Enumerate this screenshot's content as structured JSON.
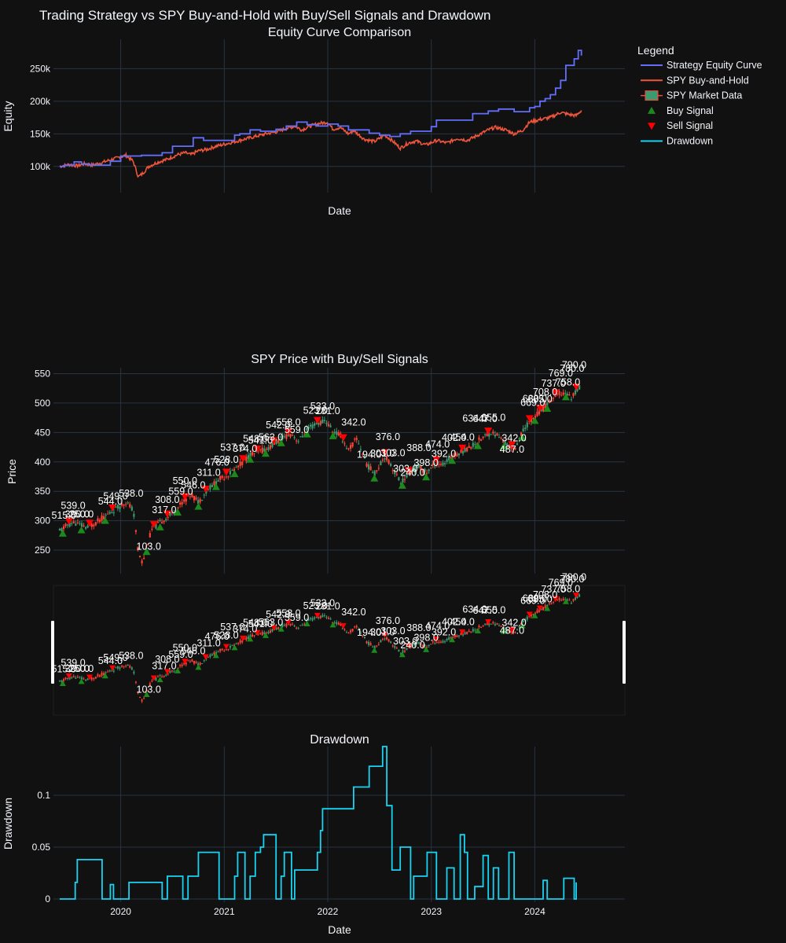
{
  "figure": {
    "title": "Trading Strategy vs SPY Buy-and-Hold with Buy/Sell Signals and Drawdown",
    "colors": {
      "background": "#111111",
      "grid": "#283442",
      "strategy": "#636efa",
      "spy": "#ef553b",
      "candle_up": "#3d9970",
      "candle_down": "#ff4136",
      "buy": "#1a8a1a",
      "sell": "#ff0000",
      "drawdown": "#19d3f3"
    }
  },
  "legend": {
    "title": "Legend",
    "items": [
      {
        "label": "Strategy Equity Curve",
        "kind": "line",
        "color": "#636efa"
      },
      {
        "label": "SPY Buy-and-Hold",
        "kind": "line",
        "color": "#ef553b"
      },
      {
        "label": "SPY Market Data",
        "kind": "candle",
        "color": "#3d9970"
      },
      {
        "label": "Buy Signal",
        "kind": "triangle-up",
        "color": "#1a8a1a"
      },
      {
        "label": "Sell Signal",
        "kind": "triangle-down",
        "color": "#ff0000"
      },
      {
        "label": "Drawdown",
        "kind": "line",
        "color": "#19d3f3"
      }
    ]
  },
  "chart_data": [
    {
      "type": "line",
      "title": "Equity Curve Comparison",
      "xlabel": "Date",
      "ylabel": "Equity",
      "xlim": [
        2019.35,
        2024.87
      ],
      "ylim": [
        60000,
        295000
      ],
      "x_ticks": [
        2020,
        2021,
        2022,
        2023,
        2024
      ],
      "y_ticks": [
        {
          "v": 100000,
          "label": "100k"
        },
        {
          "v": 150000,
          "label": "150k"
        },
        {
          "v": 200000,
          "label": "200k"
        },
        {
          "v": 250000,
          "label": "250k"
        }
      ],
      "series": [
        {
          "name": "Strategy Equity Curve",
          "shape": "step",
          "x": [
            2019.41,
            2019.46,
            2019.55,
            2019.62,
            2019.7,
            2019.9,
            2020.0,
            2020.2,
            2020.4,
            2020.5,
            2020.65,
            2020.7,
            2020.8,
            2020.95,
            2021.1,
            2021.15,
            2021.25,
            2021.35,
            2021.5,
            2021.6,
            2021.7,
            2021.8,
            2021.9,
            2022.0,
            2022.1,
            2022.2,
            2022.4,
            2022.5,
            2022.6,
            2022.7,
            2022.8,
            2023.0,
            2023.05,
            2023.3,
            2023.4,
            2023.55,
            2023.65,
            2023.8,
            2023.95,
            2024.0,
            2024.05,
            2024.1,
            2024.15,
            2024.2,
            2024.25,
            2024.3,
            2024.38,
            2024.42,
            2024.45
          ],
          "y": [
            100000,
            102000,
            107000,
            104000,
            102000,
            108000,
            116000,
            117000,
            121000,
            131000,
            131000,
            144000,
            140000,
            140000,
            148000,
            150000,
            156000,
            154000,
            157000,
            162000,
            168000,
            164000,
            162000,
            165000,
            162000,
            156000,
            151000,
            148000,
            146000,
            150000,
            154000,
            161000,
            171000,
            171000,
            181000,
            185000,
            188000,
            184000,
            190000,
            192000,
            200000,
            204000,
            210000,
            220000,
            232000,
            255000,
            265000,
            278000,
            270000
          ]
        },
        {
          "name": "SPY Buy-and-Hold",
          "shape": "line",
          "x": [
            2019.41,
            2019.5,
            2019.58,
            2019.65,
            2019.72,
            2019.82,
            2019.92,
            2020.05,
            2020.12,
            2020.17,
            2020.21,
            2020.27,
            2020.35,
            2020.45,
            2020.55,
            2020.62,
            2020.68,
            2020.75,
            2020.83,
            2020.92,
            2021.0,
            2021.1,
            2021.2,
            2021.3,
            2021.4,
            2021.5,
            2021.6,
            2021.68,
            2021.75,
            2021.83,
            2021.92,
            2022.0,
            2022.05,
            2022.12,
            2022.2,
            2022.25,
            2022.35,
            2022.45,
            2022.55,
            2022.62,
            2022.7,
            2022.78,
            2022.85,
            2022.95,
            2023.05,
            2023.15,
            2023.25,
            2023.35,
            2023.45,
            2023.55,
            2023.62,
            2023.72,
            2023.8,
            2023.88,
            2023.95,
            2024.05,
            2024.15,
            2024.25,
            2024.32,
            2024.4,
            2024.45
          ],
          "y": [
            100000,
            103000,
            101000,
            104000,
            102000,
            106000,
            111000,
            117000,
            108000,
            84000,
            89000,
            100000,
            106000,
            111000,
            118000,
            121000,
            118000,
            124000,
            126000,
            131000,
            134000,
            138000,
            142000,
            146000,
            150000,
            153000,
            158000,
            162000,
            156000,
            162000,
            166000,
            168000,
            157000,
            160000,
            150000,
            155000,
            142000,
            138000,
            148000,
            140000,
            128000,
            136000,
            139000,
            133000,
            140000,
            136000,
            143000,
            140000,
            148000,
            156000,
            160000,
            156000,
            150000,
            155000,
            168000,
            172000,
            175000,
            183000,
            180000,
            178000,
            186000
          ]
        }
      ]
    },
    {
      "type": "candlestick",
      "title": "SPY Price with Buy/Sell Signals",
      "ylabel": "Price",
      "xlim": [
        2019.35,
        2024.87
      ],
      "ylim": [
        210,
        560
      ],
      "x_ticks": [
        2020,
        2021,
        2022,
        2023,
        2024
      ],
      "y_ticks": [
        {
          "v": 250,
          "label": "250"
        },
        {
          "v": 300,
          "label": "300"
        },
        {
          "v": 350,
          "label": "350"
        },
        {
          "v": 400,
          "label": "400"
        },
        {
          "v": 450,
          "label": "450"
        },
        {
          "v": 500,
          "label": "500"
        },
        {
          "v": 550,
          "label": "550"
        }
      ],
      "price_path": {
        "x": [
          2019.41,
          2019.48,
          2019.55,
          2019.62,
          2019.68,
          2019.75,
          2019.85,
          2019.95,
          2020.05,
          2020.12,
          2020.17,
          2020.21,
          2020.25,
          2020.3,
          2020.4,
          2020.5,
          2020.6,
          2020.68,
          2020.75,
          2020.85,
          2020.95,
          2021.05,
          2021.15,
          2021.25,
          2021.35,
          2021.45,
          2021.55,
          2021.65,
          2021.72,
          2021.8,
          2021.9,
          2021.98,
          2022.05,
          2022.12,
          2022.2,
          2022.28,
          2022.38,
          2022.45,
          2022.55,
          2022.62,
          2022.7,
          2022.75,
          2022.8,
          2022.88,
          2022.95,
          2023.05,
          2023.12,
          2023.2,
          2023.3,
          2023.4,
          2023.5,
          2023.58,
          2023.65,
          2023.72,
          2023.8,
          2023.85,
          2023.92,
          2024.0,
          2024.08,
          2024.15,
          2024.22,
          2024.3,
          2024.35,
          2024.4,
          2024.45
        ],
        "y": [
          282,
          292,
          297,
          292,
          288,
          296,
          308,
          320,
          332,
          318,
          248,
          228,
          255,
          285,
          300,
          312,
          332,
          345,
          332,
          355,
          370,
          380,
          395,
          412,
          418,
          426,
          440,
          448,
          435,
          455,
          465,
          470,
          452,
          445,
          420,
          440,
          395,
          380,
          410,
          392,
          365,
          372,
          385,
          392,
          382,
          398,
          395,
          410,
          418,
          428,
          442,
          450,
          444,
          430,
          422,
          440,
          462,
          478,
          490,
          505,
          515,
          518,
          508,
          522,
          528
        ]
      },
      "buy_signals": [
        2019.44,
        2019.62,
        2019.85,
        2020.25,
        2020.38,
        2020.55,
        2020.75,
        2020.92,
        2021.1,
        2021.25,
        2021.4,
        2021.55,
        2021.8,
        2022.05,
        2022.45,
        2022.72,
        2022.95,
        2023.2,
        2023.45,
        2023.7,
        2023.88,
        2024.0,
        2024.12,
        2024.3
      ],
      "sell_signals": [
        2019.5,
        2019.7,
        2019.92,
        2020.32,
        2020.45,
        2020.62,
        2020.82,
        2021.02,
        2021.18,
        2021.32,
        2021.48,
        2021.62,
        2021.9,
        2022.15,
        2022.55,
        2022.78,
        2023.05,
        2023.3,
        2023.55,
        2023.78,
        2023.95,
        2024.05,
        2024.2,
        2024.4
      ],
      "annotations": [
        {
          "x": 2019.45,
          "text": "515.0",
          "dy": -6
        },
        {
          "x": 2019.54,
          "text": "539.0",
          "dy": -12
        },
        {
          "x": 2019.58,
          "text": "390.0",
          "dy": -2
        },
        {
          "x": 2019.62,
          "text": "250.0",
          "dy": -4
        },
        {
          "x": 2019.9,
          "text": "544.0",
          "dy": -4
        },
        {
          "x": 2019.95,
          "text": "549.0",
          "dy": -6
        },
        {
          "x": 2020.1,
          "text": "538.0",
          "dy": -8
        },
        {
          "x": 2020.27,
          "text": "103.0",
          "dy": 18
        },
        {
          "x": 2020.45,
          "text": "308.0",
          "dy": -12
        },
        {
          "x": 2020.42,
          "text": "317.0",
          "dy": -2
        },
        {
          "x": 2020.58,
          "text": "559.0",
          "dy": -6
        },
        {
          "x": 2020.62,
          "text": "550.0",
          "dy": -14
        },
        {
          "x": 2020.7,
          "text": "546.0",
          "dy": -4
        },
        {
          "x": 2020.85,
          "text": "311.0",
          "dy": -10
        },
        {
          "x": 2020.93,
          "text": "476.0",
          "dy": -14
        },
        {
          "x": 2021.02,
          "text": "528.0",
          "dy": -10
        },
        {
          "x": 2021.08,
          "text": "537.0",
          "dy": -20
        },
        {
          "x": 2021.2,
          "text": "374.0",
          "dy": -4
        },
        {
          "x": 2021.3,
          "text": "548.0",
          "dy": -8
        },
        {
          "x": 2021.35,
          "text": "541.0",
          "dy": -4
        },
        {
          "x": 2021.45,
          "text": "563.0",
          "dy": -2
        },
        {
          "x": 2021.52,
          "text": "542.0",
          "dy": -10
        },
        {
          "x": 2021.62,
          "text": "558.0",
          "dy": -6
        },
        {
          "x": 2021.7,
          "text": "559.0",
          "dy": -2
        },
        {
          "x": 2021.88,
          "text": "523.0",
          "dy": -8
        },
        {
          "x": 2021.95,
          "text": "533.0",
          "dy": -10
        },
        {
          "x": 2022.0,
          "text": "281.0",
          "dy": -6
        },
        {
          "x": 2022.25,
          "text": "342.0",
          "dy": -16
        },
        {
          "x": 2022.4,
          "text": "194.0",
          "dy": -6
        },
        {
          "x": 2022.53,
          "text": "301.0",
          "dy": 2
        },
        {
          "x": 2022.58,
          "text": "376.0",
          "dy": -20
        },
        {
          "x": 2022.63,
          "text": "303.0",
          "dy": -10
        },
        {
          "x": 2022.75,
          "text": "303.0",
          "dy": -2
        },
        {
          "x": 2022.82,
          "text": "240.0",
          "dy": 14
        },
        {
          "x": 2022.88,
          "text": "388.0",
          "dy": -14
        },
        {
          "x": 2022.95,
          "text": "398.0",
          "dy": -2
        },
        {
          "x": 2023.06,
          "text": "474.0",
          "dy": -14
        },
        {
          "x": 2023.12,
          "text": "392.0",
          "dy": -4
        },
        {
          "x": 2023.22,
          "text": "402.0",
          "dy": -12
        },
        {
          "x": 2023.3,
          "text": "454.0",
          "dy": -8
        },
        {
          "x": 2023.42,
          "text": "634.0",
          "dy": -22
        },
        {
          "x": 2023.52,
          "text": "647.0",
          "dy": -12
        },
        {
          "x": 2023.6,
          "text": "655.0",
          "dy": -10
        },
        {
          "x": 2023.8,
          "text": "342.0",
          "dy": -4
        },
        {
          "x": 2023.78,
          "text": "487.0",
          "dy": 12
        },
        {
          "x": 2023.98,
          "text": "669.0",
          "dy": -10
        },
        {
          "x": 2024.0,
          "text": "680.0",
          "dy": -12
        },
        {
          "x": 2024.05,
          "text": "685.0",
          "dy": -6
        },
        {
          "x": 2024.1,
          "text": "708.0",
          "dy": -8
        },
        {
          "x": 2024.18,
          "text": "737.0",
          "dy": -8
        },
        {
          "x": 2024.25,
          "text": "769.0",
          "dy": -16
        },
        {
          "x": 2024.32,
          "text": "758.0",
          "dy": -6
        },
        {
          "x": 2024.36,
          "text": "780.0",
          "dy": -26
        },
        {
          "x": 2024.38,
          "text": "790.0",
          "dy": -26
        }
      ]
    },
    {
      "type": "line",
      "title": "Drawdown",
      "xlabel": "Date",
      "ylabel": "Drawdown",
      "xlim": [
        2019.35,
        2024.87
      ],
      "ylim": [
        -0.003,
        0.147
      ],
      "x_ticks": [
        {
          "v": 2020,
          "label": "2020"
        },
        {
          "v": 2021,
          "label": "2021"
        },
        {
          "v": 2022,
          "label": "2022"
        },
        {
          "v": 2023,
          "label": "2023"
        },
        {
          "v": 2024,
          "label": "2024"
        }
      ],
      "y_ticks": [
        {
          "v": 0,
          "label": "0"
        },
        {
          "v": 0.05,
          "label": "0.05"
        },
        {
          "v": 0.1,
          "label": "0.1"
        }
      ],
      "series": [
        {
          "name": "Drawdown",
          "shape": "step",
          "x": [
            2019.41,
            2019.56,
            2019.58,
            2019.62,
            2019.82,
            2019.9,
            2019.93,
            2020.08,
            2020.4,
            2020.45,
            2020.6,
            2020.65,
            2020.75,
            2020.8,
            2020.95,
            2021.1,
            2021.13,
            2021.2,
            2021.25,
            2021.3,
            2021.35,
            2021.38,
            2021.5,
            2021.55,
            2021.58,
            2021.65,
            2021.68,
            2021.9,
            2021.93,
            2021.95,
            2022.25,
            2022.4,
            2022.53,
            2022.57,
            2022.62,
            2022.7,
            2022.8,
            2022.83,
            2022.96,
            2023.05,
            2023.15,
            2023.22,
            2023.28,
            2023.32,
            2023.35,
            2023.42,
            2023.5,
            2023.55,
            2023.6,
            2023.65,
            2023.75,
            2023.8,
            2023.83,
            2023.88,
            2023.95,
            2024.08,
            2024.12,
            2024.28,
            2024.38,
            2024.4
          ],
          "y": [
            0.0,
            0.016,
            0.038,
            0.038,
            0.0,
            0.014,
            0.0,
            0.016,
            0.0,
            0.022,
            0.0,
            0.022,
            0.045,
            0.045,
            0.0,
            0.022,
            0.045,
            0.0,
            0.022,
            0.045,
            0.05,
            0.062,
            0.0,
            0.022,
            0.045,
            0.0,
            0.028,
            0.045,
            0.066,
            0.087,
            0.108,
            0.128,
            0.147,
            0.09,
            0.028,
            0.05,
            0.0,
            0.022,
            0.045,
            0.0,
            0.03,
            0.0,
            0.062,
            0.045,
            0.0,
            0.012,
            0.042,
            0.0,
            0.03,
            0.0,
            0.045,
            0.0,
            0.0,
            0.0,
            0.0,
            0.018,
            0.0,
            0.02,
            0.0,
            0.016
          ]
        }
      ]
    }
  ]
}
